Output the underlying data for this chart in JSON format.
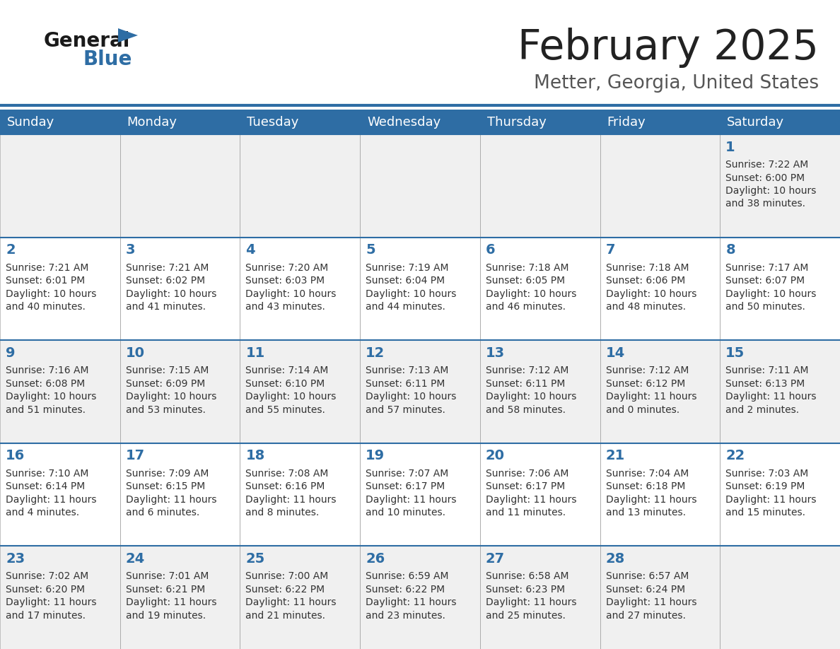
{
  "title": "February 2025",
  "subtitle": "Metter, Georgia, United States",
  "header_bg": "#2E6DA4",
  "header_text_color": "#FFFFFF",
  "day_names": [
    "Sunday",
    "Monday",
    "Tuesday",
    "Wednesday",
    "Thursday",
    "Friday",
    "Saturday"
  ],
  "cell_bg_gray": "#F0F0F0",
  "cell_bg_white": "#FFFFFF",
  "title_color": "#222222",
  "subtitle_color": "#555555",
  "day_num_color": "#2E6DA4",
  "info_color": "#333333",
  "grid_color": "#AAAAAA",
  "row_border_color": "#2E6DA4",
  "logo_general_color": "#1a1a1a",
  "logo_blue_color": "#2E6DA4",
  "calendar": [
    [
      null,
      null,
      null,
      null,
      null,
      null,
      {
        "day": 1,
        "sunrise": "7:22 AM",
        "sunset": "6:00 PM",
        "daylight": "10 hours",
        "daylight2": "and 38 minutes."
      }
    ],
    [
      {
        "day": 2,
        "sunrise": "7:21 AM",
        "sunset": "6:01 PM",
        "daylight": "10 hours",
        "daylight2": "and 40 minutes."
      },
      {
        "day": 3,
        "sunrise": "7:21 AM",
        "sunset": "6:02 PM",
        "daylight": "10 hours",
        "daylight2": "and 41 minutes."
      },
      {
        "day": 4,
        "sunrise": "7:20 AM",
        "sunset": "6:03 PM",
        "daylight": "10 hours",
        "daylight2": "and 43 minutes."
      },
      {
        "day": 5,
        "sunrise": "7:19 AM",
        "sunset": "6:04 PM",
        "daylight": "10 hours",
        "daylight2": "and 44 minutes."
      },
      {
        "day": 6,
        "sunrise": "7:18 AM",
        "sunset": "6:05 PM",
        "daylight": "10 hours",
        "daylight2": "and 46 minutes."
      },
      {
        "day": 7,
        "sunrise": "7:18 AM",
        "sunset": "6:06 PM",
        "daylight": "10 hours",
        "daylight2": "and 48 minutes."
      },
      {
        "day": 8,
        "sunrise": "7:17 AM",
        "sunset": "6:07 PM",
        "daylight": "10 hours",
        "daylight2": "and 50 minutes."
      }
    ],
    [
      {
        "day": 9,
        "sunrise": "7:16 AM",
        "sunset": "6:08 PM",
        "daylight": "10 hours",
        "daylight2": "and 51 minutes."
      },
      {
        "day": 10,
        "sunrise": "7:15 AM",
        "sunset": "6:09 PM",
        "daylight": "10 hours",
        "daylight2": "and 53 minutes."
      },
      {
        "day": 11,
        "sunrise": "7:14 AM",
        "sunset": "6:10 PM",
        "daylight": "10 hours",
        "daylight2": "and 55 minutes."
      },
      {
        "day": 12,
        "sunrise": "7:13 AM",
        "sunset": "6:11 PM",
        "daylight": "10 hours",
        "daylight2": "and 57 minutes."
      },
      {
        "day": 13,
        "sunrise": "7:12 AM",
        "sunset": "6:11 PM",
        "daylight": "10 hours",
        "daylight2": "and 58 minutes."
      },
      {
        "day": 14,
        "sunrise": "7:12 AM",
        "sunset": "6:12 PM",
        "daylight": "11 hours",
        "daylight2": "and 0 minutes."
      },
      {
        "day": 15,
        "sunrise": "7:11 AM",
        "sunset": "6:13 PM",
        "daylight": "11 hours",
        "daylight2": "and 2 minutes."
      }
    ],
    [
      {
        "day": 16,
        "sunrise": "7:10 AM",
        "sunset": "6:14 PM",
        "daylight": "11 hours",
        "daylight2": "and 4 minutes."
      },
      {
        "day": 17,
        "sunrise": "7:09 AM",
        "sunset": "6:15 PM",
        "daylight": "11 hours",
        "daylight2": "and 6 minutes."
      },
      {
        "day": 18,
        "sunrise": "7:08 AM",
        "sunset": "6:16 PM",
        "daylight": "11 hours",
        "daylight2": "and 8 minutes."
      },
      {
        "day": 19,
        "sunrise": "7:07 AM",
        "sunset": "6:17 PM",
        "daylight": "11 hours",
        "daylight2": "and 10 minutes."
      },
      {
        "day": 20,
        "sunrise": "7:06 AM",
        "sunset": "6:17 PM",
        "daylight": "11 hours",
        "daylight2": "and 11 minutes."
      },
      {
        "day": 21,
        "sunrise": "7:04 AM",
        "sunset": "6:18 PM",
        "daylight": "11 hours",
        "daylight2": "and 13 minutes."
      },
      {
        "day": 22,
        "sunrise": "7:03 AM",
        "sunset": "6:19 PM",
        "daylight": "11 hours",
        "daylight2": "and 15 minutes."
      }
    ],
    [
      {
        "day": 23,
        "sunrise": "7:02 AM",
        "sunset": "6:20 PM",
        "daylight": "11 hours",
        "daylight2": "and 17 minutes."
      },
      {
        "day": 24,
        "sunrise": "7:01 AM",
        "sunset": "6:21 PM",
        "daylight": "11 hours",
        "daylight2": "and 19 minutes."
      },
      {
        "day": 25,
        "sunrise": "7:00 AM",
        "sunset": "6:22 PM",
        "daylight": "11 hours",
        "daylight2": "and 21 minutes."
      },
      {
        "day": 26,
        "sunrise": "6:59 AM",
        "sunset": "6:22 PM",
        "daylight": "11 hours",
        "daylight2": "and 23 minutes."
      },
      {
        "day": 27,
        "sunrise": "6:58 AM",
        "sunset": "6:23 PM",
        "daylight": "11 hours",
        "daylight2": "and 25 minutes."
      },
      {
        "day": 28,
        "sunrise": "6:57 AM",
        "sunset": "6:24 PM",
        "daylight": "11 hours",
        "daylight2": "and 27 minutes."
      },
      null
    ]
  ]
}
